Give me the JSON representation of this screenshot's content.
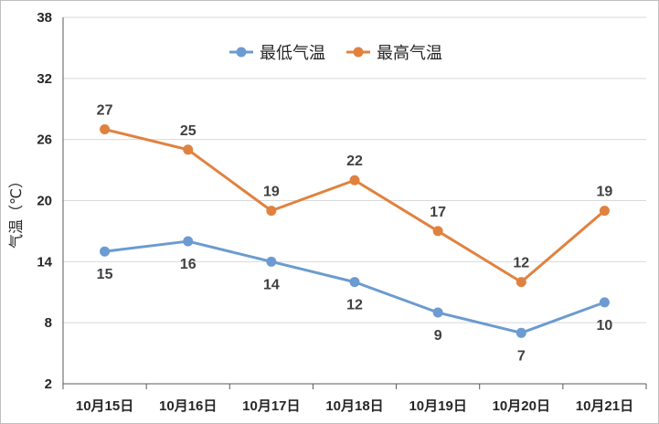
{
  "chart_data": {
    "type": "line",
    "title": "",
    "xlabel": "",
    "ylabel": "气温（℃）",
    "categories": [
      "10月15日",
      "10月16日",
      "10月17日",
      "10月18日",
      "10月19日",
      "10月20日",
      "10月21日"
    ],
    "series": [
      {
        "name": "最低气温",
        "values": [
          15,
          16,
          14,
          12,
          9,
          7,
          10
        ],
        "color": "#6b9bd0"
      },
      {
        "name": "最高气温",
        "values": [
          27,
          25,
          19,
          22,
          17,
          12,
          19
        ],
        "color": "#e0823f"
      }
    ],
    "ylim": [
      2,
      38
    ],
    "yticks": [
      2,
      8,
      14,
      20,
      26,
      32,
      38
    ],
    "grid": true,
    "legend_position": "top"
  }
}
